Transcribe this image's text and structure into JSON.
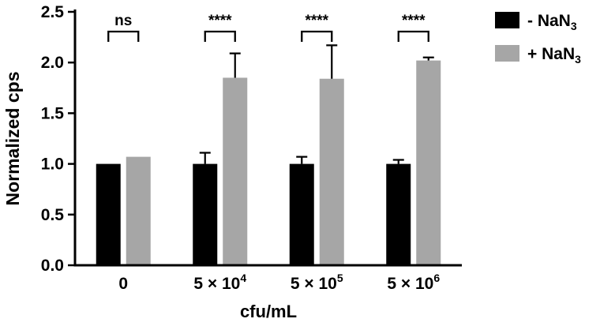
{
  "chart_data": {
    "type": "bar",
    "title": "",
    "xlabel": "cfu/mL",
    "ylabel": "Normalized cps",
    "ylim": [
      0,
      2.5
    ],
    "ytick_step": 0.5,
    "yticks": [
      "0.0",
      "0.5",
      "1.0",
      "1.5",
      "2.0",
      "2.5"
    ],
    "grid": false,
    "legend_position": "top-right",
    "categories": [
      {
        "text": "0",
        "sup": ""
      },
      {
        "text": "5 × 10",
        "sup": "4"
      },
      {
        "text": "5 × 10",
        "sup": "5"
      },
      {
        "text": "5 × 10",
        "sup": "6"
      }
    ],
    "series": [
      {
        "name_text": "- NaN",
        "name_sub": "3",
        "color": "#000000",
        "values": [
          1.0,
          1.0,
          1.0,
          1.0
        ],
        "errors": [
          0,
          0.11,
          0.07,
          0.04
        ]
      },
      {
        "name_text": "+ NaN",
        "name_sub": "3",
        "color": "#a6a6a6",
        "values": [
          1.07,
          1.85,
          1.84,
          2.02
        ],
        "errors": [
          0,
          0.24,
          0.33,
          0.03
        ]
      }
    ],
    "error_bar_color": "#000000",
    "significance": [
      "ns",
      "****",
      "****",
      "****"
    ]
  }
}
